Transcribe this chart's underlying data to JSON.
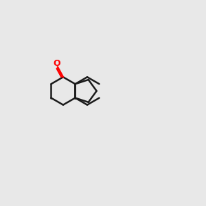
{
  "background_color": "#e8e8e8",
  "bond_color": "#1a1a1a",
  "nitrogen_color": "#0000ff",
  "oxygen_color": "#ff0000",
  "text_color": "#1a1a1a",
  "figsize": [
    3.0,
    3.0
  ],
  "dpi": 100
}
